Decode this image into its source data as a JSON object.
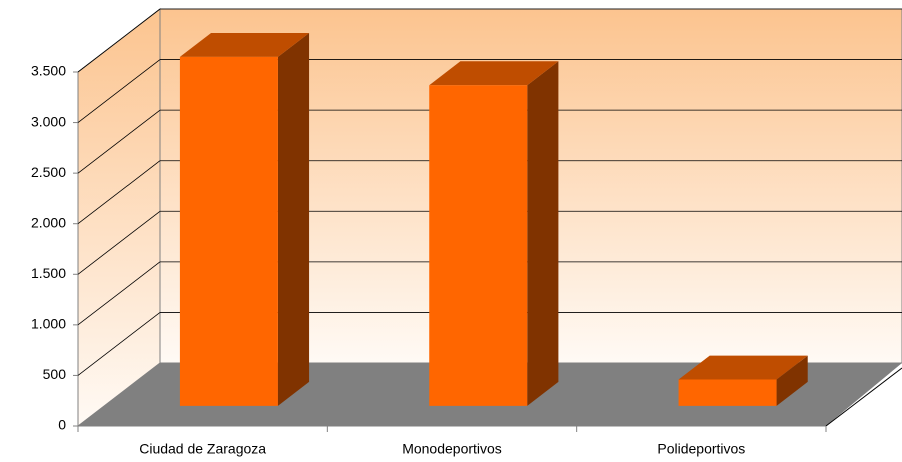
{
  "chart_data": {
    "type": "bar3d",
    "categories": [
      "Ciudad de Zaragoza",
      "Monodeportivos",
      "Polideportivos"
    ],
    "values": [
      3450,
      3170,
      260
    ],
    "color": "#ff6600",
    "ylim": [
      0,
      3500
    ],
    "yticks": [
      0,
      500,
      {
        "value": 1000,
        "label": "1.000"
      },
      {
        "value": 1500,
        "label": "1.500"
      },
      {
        "value": 2000,
        "label": "2.000"
      },
      {
        "value": 2500,
        "label": "2.500"
      },
      {
        "value": 3000,
        "label": "3.000"
      },
      {
        "value": 3500,
        "label": "3.500"
      }
    ],
    "grid": true
  }
}
